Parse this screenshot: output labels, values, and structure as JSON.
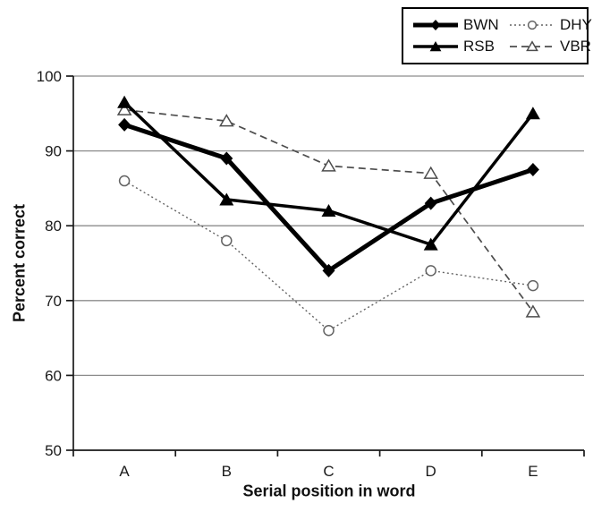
{
  "colors": {
    "background": "#ffffff",
    "gridline": "#8c8c8c",
    "axis": "#1a1a1a",
    "text": "#1a1a1a"
  },
  "chart_data": {
    "type": "line",
    "categories": [
      "A",
      "B",
      "C",
      "D",
      "E"
    ],
    "series": [
      {
        "name": "BWN",
        "values": [
          93.5,
          89,
          74,
          83,
          87.5
        ],
        "marker": "filled-diamond",
        "line": "solid-thick",
        "color": "#000000"
      },
      {
        "name": "RSB",
        "values": [
          96.5,
          83.5,
          82,
          77.5,
          95
        ],
        "marker": "filled-triangle",
        "line": "solid",
        "color": "#000000"
      },
      {
        "name": "DHY",
        "values": [
          86,
          78,
          66,
          74,
          72
        ],
        "marker": "open-circle",
        "line": "dotted",
        "color": "#636363"
      },
      {
        "name": "VBR",
        "values": [
          95.5,
          94,
          88,
          87,
          68.5
        ],
        "marker": "open-triangle",
        "line": "dashed",
        "color": "#4d4d4d"
      }
    ],
    "title": "",
    "xlabel": "Serial position in word",
    "ylabel": "Percent correct",
    "ylim": [
      50,
      100
    ],
    "yticks": [
      50,
      60,
      70,
      80,
      90,
      100
    ],
    "grid": true,
    "legend_position": "top-right",
    "legend_rows": [
      [
        "BWN",
        "DHY"
      ],
      [
        "RSB",
        "VBR"
      ]
    ]
  }
}
